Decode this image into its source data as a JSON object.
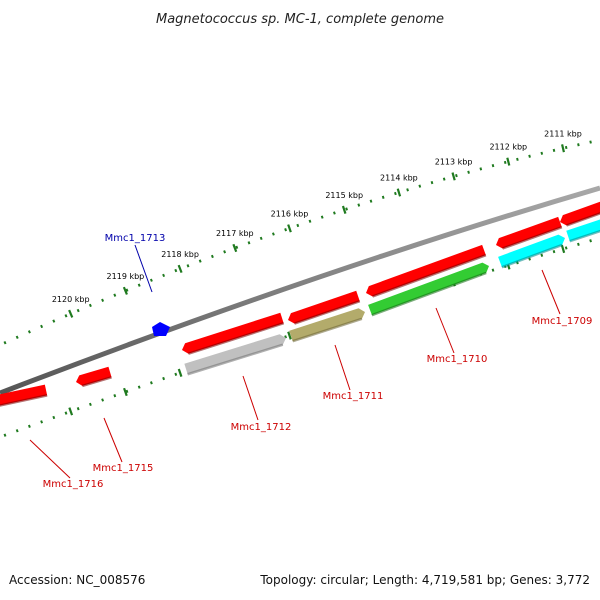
{
  "title": "Magnetococcus sp. MC-1, complete genome",
  "footer": {
    "accession": "Accession: NC_008576",
    "topology": "Topology: circular; Length: 4,719,581 bp; Genes: 3,772"
  },
  "ticks": [
    {
      "kbp": 2111,
      "label": "2111 kbp"
    },
    {
      "kbp": 2112,
      "label": "2112 kbp"
    },
    {
      "kbp": 2113,
      "label": "2113 kbp"
    },
    {
      "kbp": 2114,
      "label": "2114 kbp"
    },
    {
      "kbp": 2115,
      "label": "2115 kbp"
    },
    {
      "kbp": 2116,
      "label": "2116 kbp"
    },
    {
      "kbp": 2117,
      "label": "2117 kbp"
    },
    {
      "kbp": 2118,
      "label": "2118 kbp"
    },
    {
      "kbp": 2119,
      "label": "2119 kbp"
    },
    {
      "kbp": 2120,
      "label": "2120 kbp"
    }
  ],
  "colors": {
    "backbone": "#7a7a7a",
    "tick": "#1f7a1f",
    "cds": "#ff0000",
    "gene_label": "#cc0000",
    "highlight_label": "#0000aa",
    "mmc1_1709": "#00ffff",
    "mmc1_1710": "#33cc33",
    "mmc1_1711": "#b3ab6b",
    "mmc1_1712": "#c0c0c0",
    "mmc1_1713": "#0000ff"
  },
  "genes": [
    {
      "id": "g1716",
      "label": "Mmc1_1716"
    },
    {
      "id": "g1715",
      "label": "Mmc1_1715"
    },
    {
      "id": "g1713",
      "label": "Mmc1_1713"
    },
    {
      "id": "g1712",
      "label": "Mmc1_1712"
    },
    {
      "id": "g1711",
      "label": "Mmc1_1711"
    },
    {
      "id": "g1710",
      "label": "Mmc1_1710"
    },
    {
      "id": "g1709",
      "label": "Mmc1_1709"
    }
  ]
}
